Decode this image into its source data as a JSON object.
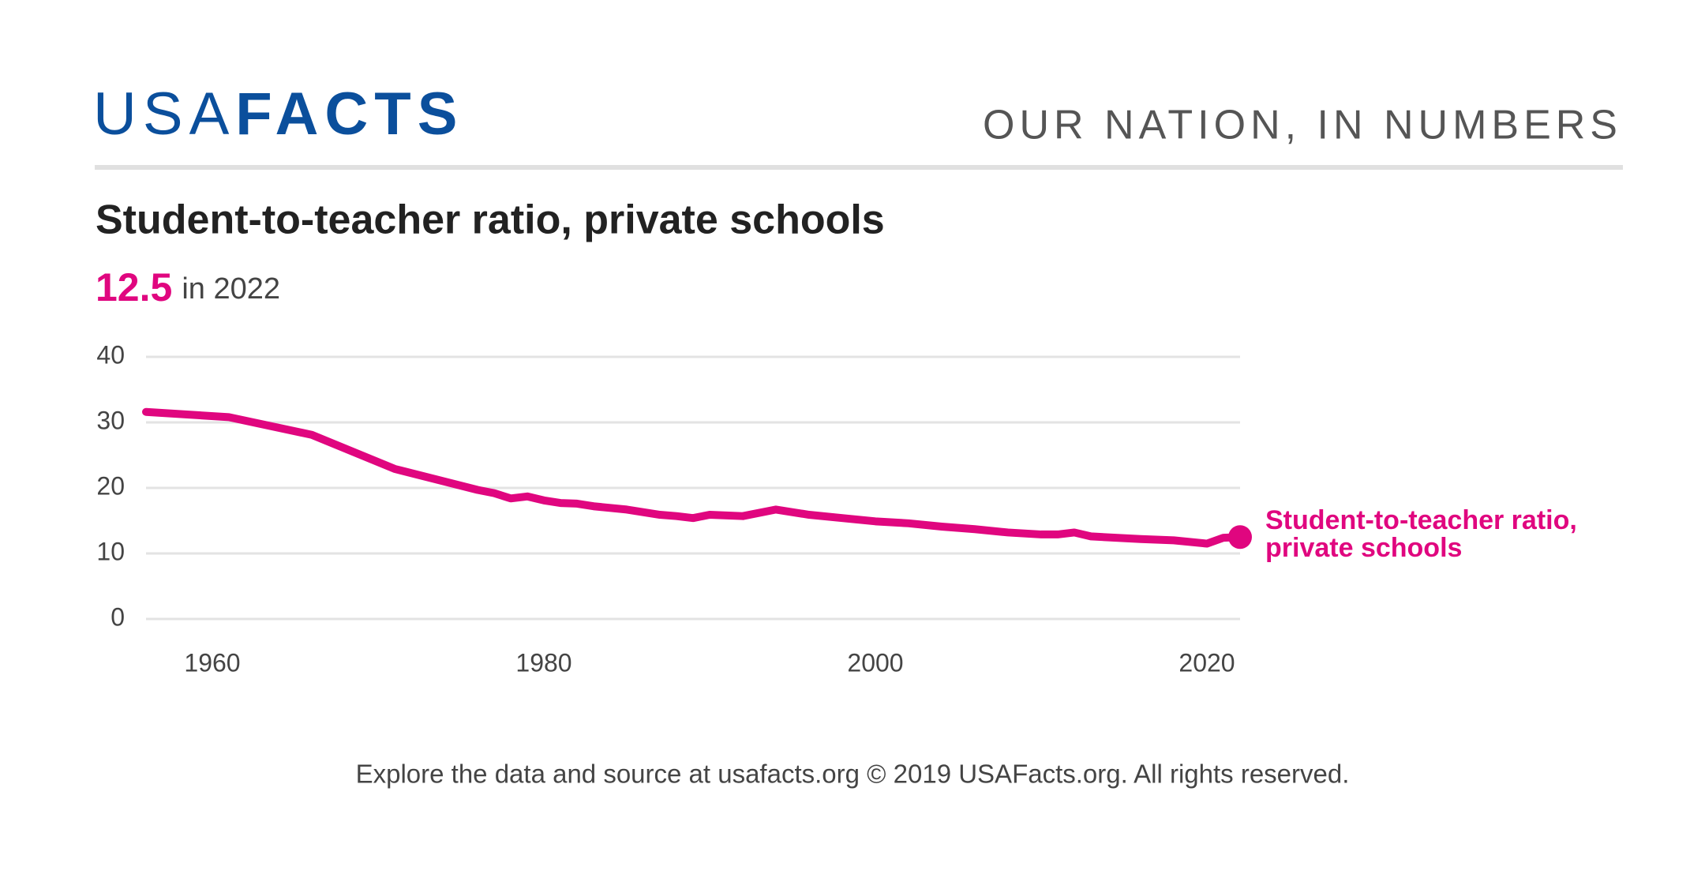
{
  "header": {
    "logo_light": "USA",
    "logo_bold": "FACTS",
    "tagline": "OUR NATION, IN NUMBERS"
  },
  "chart_data": {
    "type": "line",
    "title": "Student-to-teacher ratio, private schools",
    "headline_value": 12.5,
    "headline_suffix": "in 2022",
    "x": [
      1956,
      1961,
      1966,
      1971,
      1976,
      1977,
      1978,
      1979,
      1980,
      1981,
      1982,
      1983,
      1985,
      1987,
      1988,
      1989,
      1990,
      1992,
      1994,
      1996,
      1998,
      2000,
      2002,
      2004,
      2006,
      2008,
      2010,
      2011,
      2012,
      2013,
      2016,
      2018,
      2020,
      2021,
      2022
    ],
    "series": [
      {
        "name": "Student-to-teacher ratio, private schools",
        "color": "#e0067f",
        "values": [
          31.6,
          30.8,
          28.1,
          22.9,
          19.7,
          19.2,
          18.4,
          18.7,
          18.1,
          17.7,
          17.6,
          17.2,
          16.7,
          15.9,
          15.7,
          15.4,
          15.9,
          15.7,
          16.7,
          15.9,
          15.4,
          14.9,
          14.6,
          14.1,
          13.7,
          13.2,
          12.9,
          12.9,
          13.2,
          12.6,
          12.2,
          12.0,
          11.5,
          12.4,
          12.5
        ]
      }
    ],
    "xlim": [
      1956,
      2022
    ],
    "xticks": [
      1960,
      1980,
      2000,
      2020
    ],
    "ylim": [
      0,
      40
    ],
    "yticks": [
      0,
      10,
      20,
      30,
      40
    ],
    "grid": true
  },
  "footer": "Explore the data and source at usafacts.org © 2019 USAFacts.org. All rights reserved."
}
